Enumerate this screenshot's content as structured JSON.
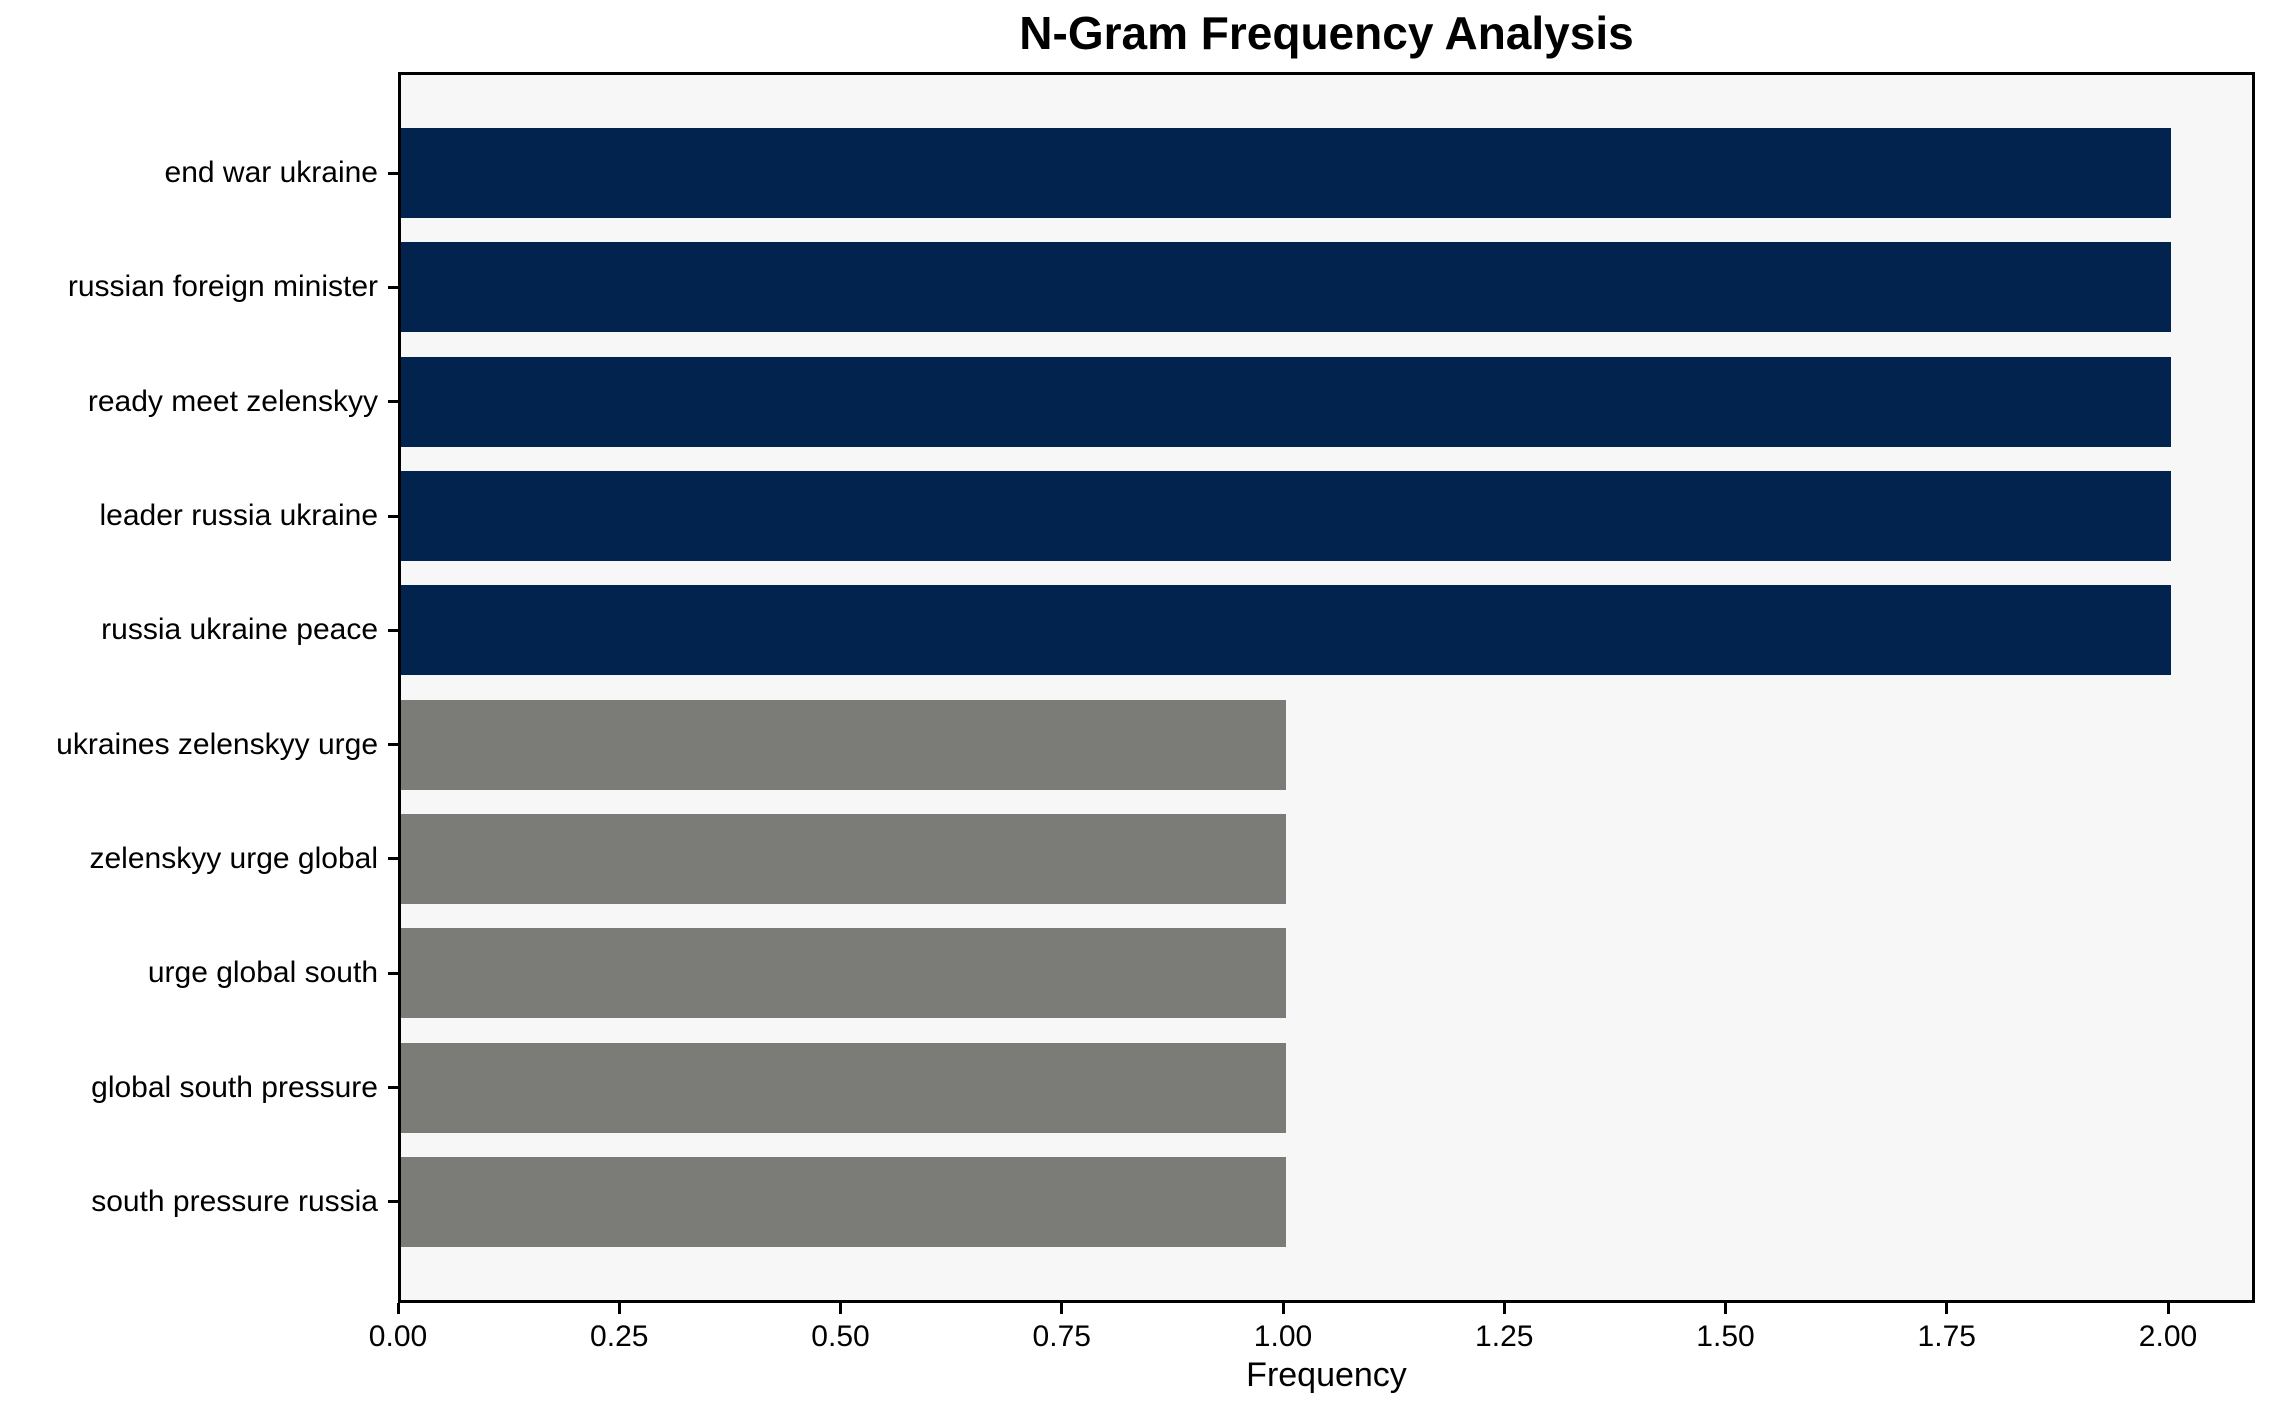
{
  "chart_data": {
    "type": "bar",
    "orientation": "horizontal",
    "title": "N-Gram Frequency Analysis",
    "xlabel": "Frequency",
    "ylabel": "",
    "categories": [
      "end war ukraine",
      "russian foreign minister",
      "ready meet zelenskyy",
      "leader russia ukraine",
      "russia ukraine peace",
      "ukraines zelenskyy urge",
      "zelenskyy urge global",
      "urge global south",
      "global south pressure",
      "south pressure russia"
    ],
    "values": [
      2.0,
      2.0,
      2.0,
      2.0,
      2.0,
      1.0,
      1.0,
      1.0,
      1.0,
      1.0
    ],
    "bar_colors": [
      "#02234e",
      "#02234e",
      "#02234e",
      "#02234e",
      "#02234e",
      "#7b7b77",
      "#7b7b77",
      "#7b7b77",
      "#7b7b77",
      "#7b7b77"
    ],
    "x_ticks": [
      "0.00",
      "0.25",
      "0.50",
      "0.75",
      "1.00",
      "1.25",
      "1.50",
      "1.75",
      "2.00"
    ],
    "x_tick_values": [
      0,
      0.25,
      0.5,
      0.75,
      1.0,
      1.25,
      1.5,
      1.75,
      2.0
    ],
    "xlim": [
      0,
      2.097
    ],
    "grid": false,
    "legend_position": "none",
    "colors": {
      "highlight_bar": "#02234e",
      "muted_bar": "#7b7b77",
      "plot_background": "#f7f7f8",
      "figure_background": "#ffffff",
      "axis": "#000000",
      "text": "#000000"
    }
  }
}
